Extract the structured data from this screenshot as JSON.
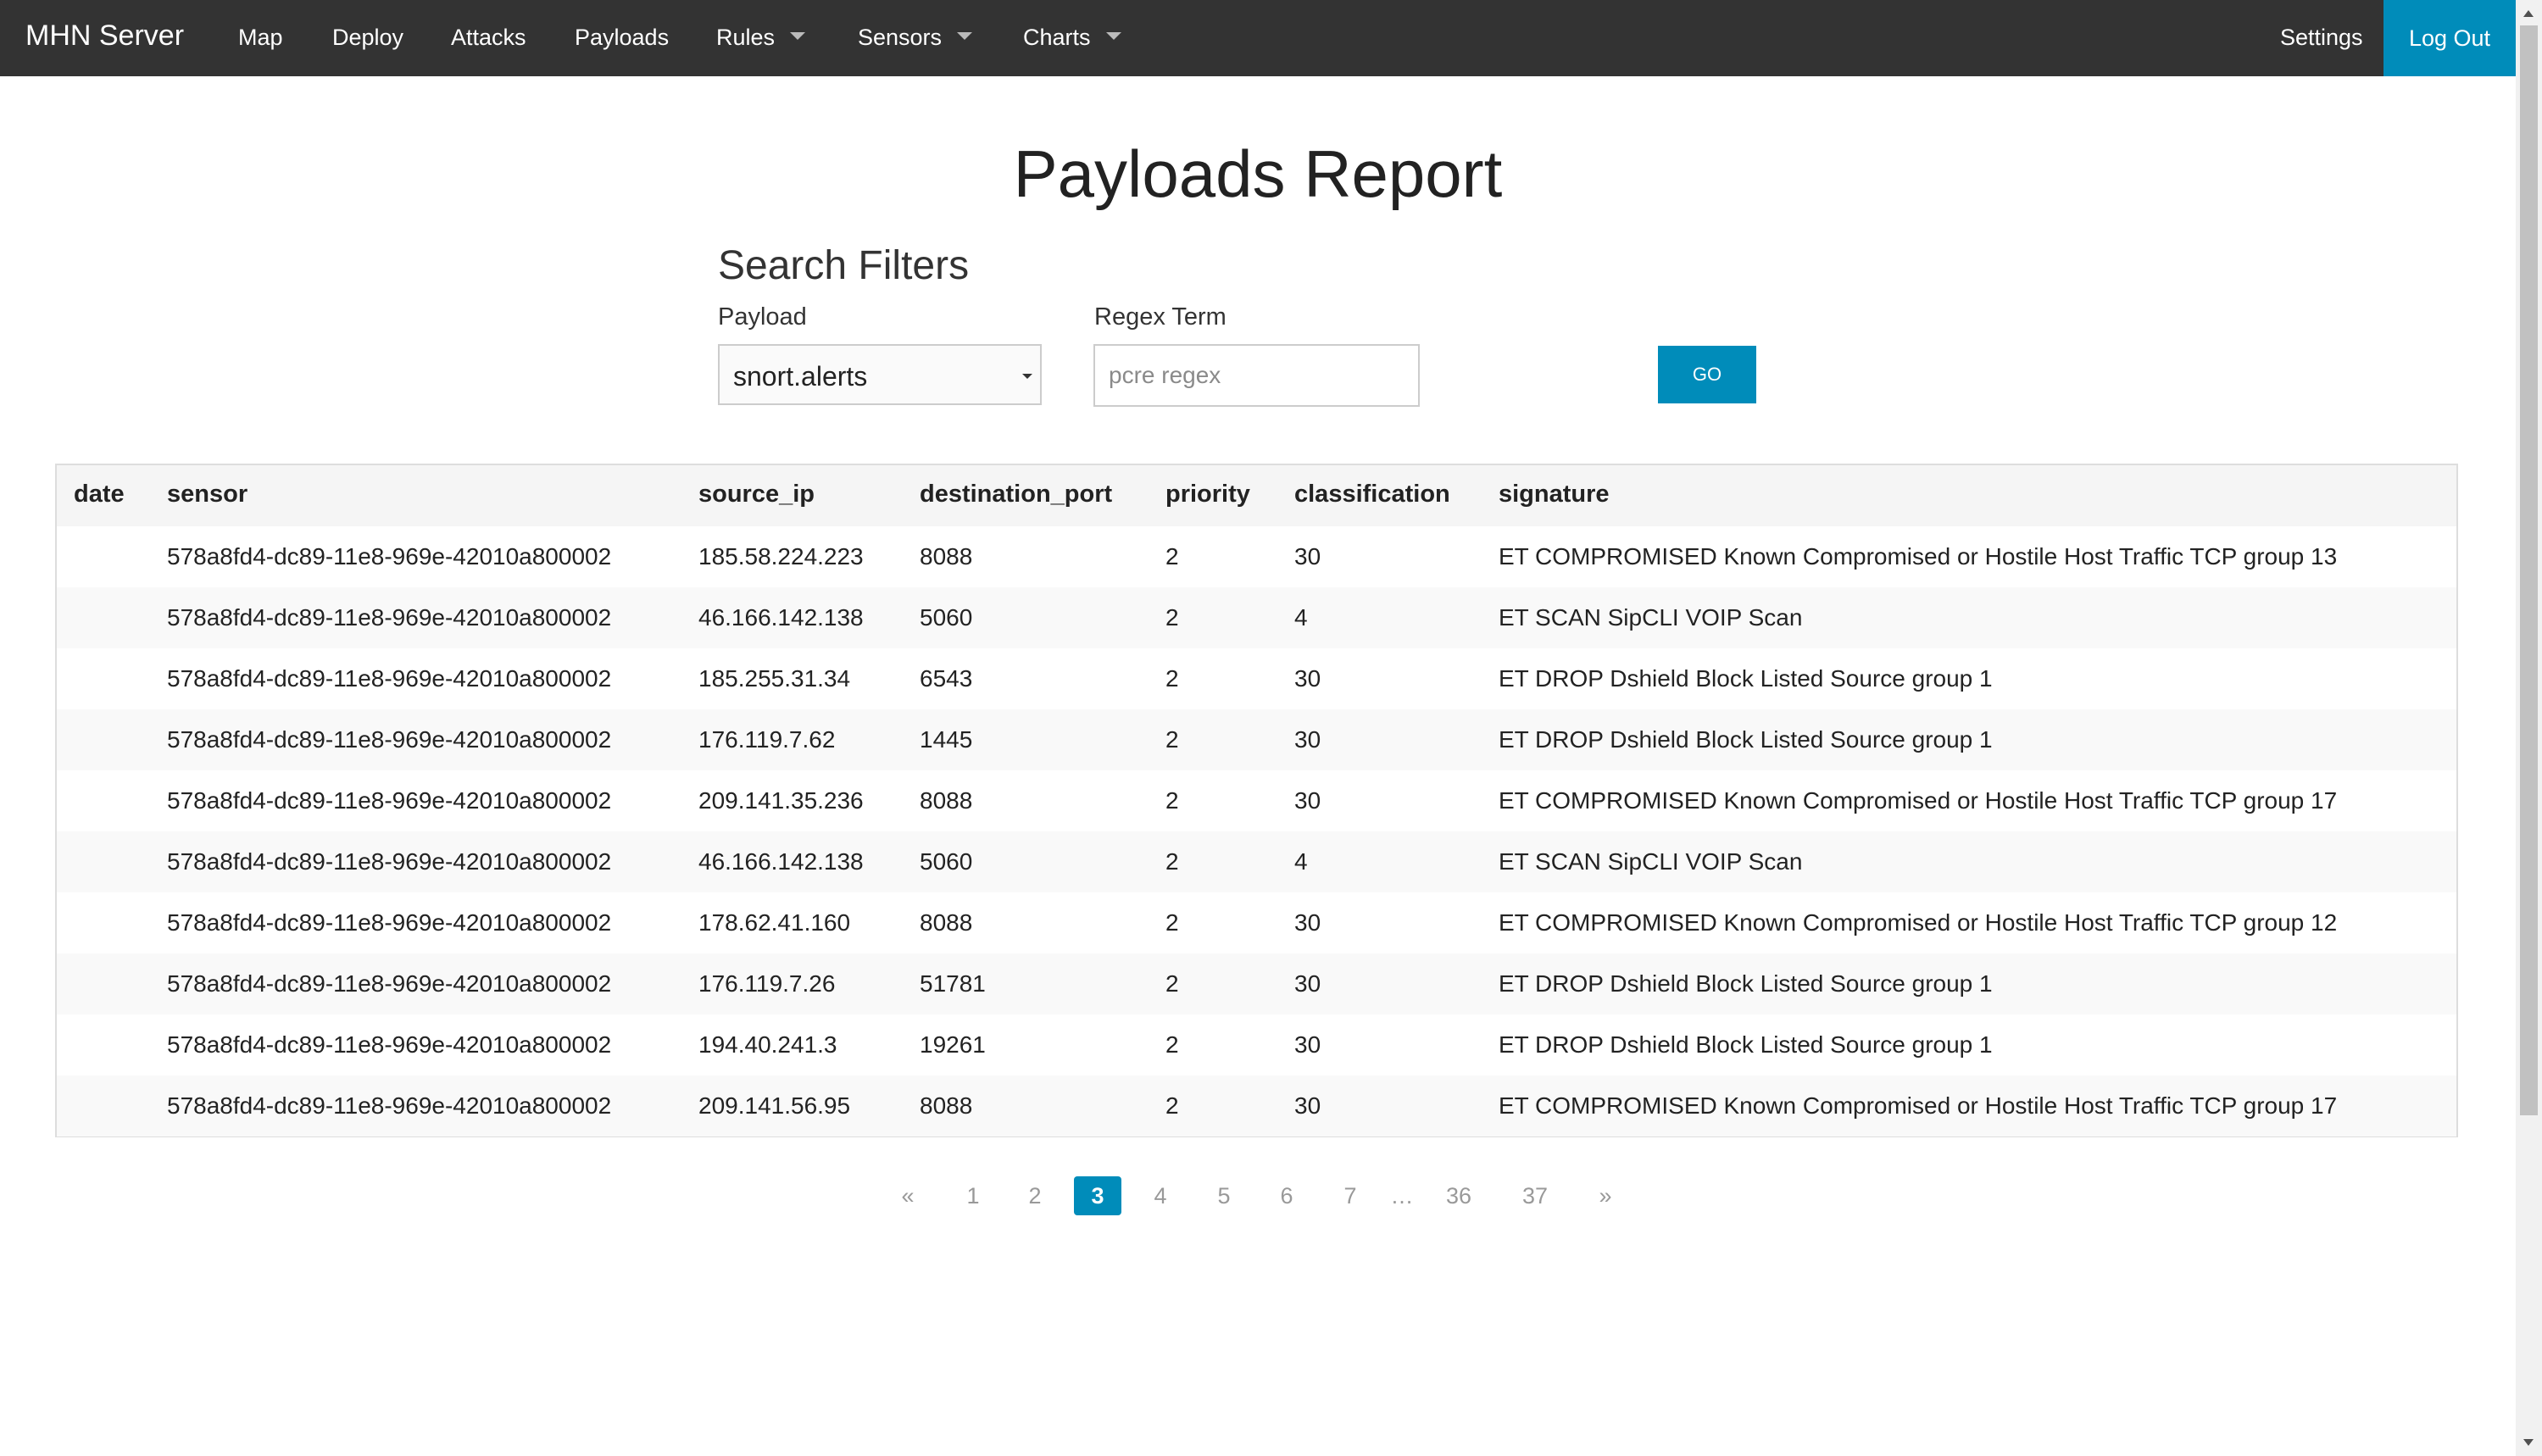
{
  "nav": {
    "brand": "MHN Server",
    "items": [
      {
        "label": "Map"
      },
      {
        "label": "Deploy"
      },
      {
        "label": "Attacks"
      },
      {
        "label": "Payloads"
      },
      {
        "label": "Rules"
      },
      {
        "label": "Sensors"
      },
      {
        "label": "Charts"
      }
    ],
    "settings": "Settings",
    "logout": "Log Out"
  },
  "page": {
    "title": "Payloads Report"
  },
  "filters": {
    "heading": "Search Filters",
    "payload_label": "Payload",
    "payload_value": "snort.alerts",
    "regex_label": "Regex Term",
    "regex_placeholder": "pcre regex",
    "go_label": "GO"
  },
  "table": {
    "headers": [
      "date",
      "sensor",
      "source_ip",
      "destination_port",
      "priority",
      "classification",
      "signature"
    ],
    "rows": [
      {
        "date": "",
        "sensor": "578a8fd4-dc89-11e8-969e-42010a800002",
        "source_ip": "185.58.224.223",
        "destination_port": "8088",
        "priority": "2",
        "classification": "30",
        "signature": "ET COMPROMISED Known Compromised or Hostile Host Traffic TCP group 13"
      },
      {
        "date": "",
        "sensor": "578a8fd4-dc89-11e8-969e-42010a800002",
        "source_ip": "46.166.142.138",
        "destination_port": "5060",
        "priority": "2",
        "classification": "4",
        "signature": "ET SCAN SipCLI VOIP Scan"
      },
      {
        "date": "",
        "sensor": "578a8fd4-dc89-11e8-969e-42010a800002",
        "source_ip": "185.255.31.34",
        "destination_port": "6543",
        "priority": "2",
        "classification": "30",
        "signature": "ET DROP Dshield Block Listed Source group 1"
      },
      {
        "date": "",
        "sensor": "578a8fd4-dc89-11e8-969e-42010a800002",
        "source_ip": "176.119.7.62",
        "destination_port": "1445",
        "priority": "2",
        "classification": "30",
        "signature": "ET DROP Dshield Block Listed Source group 1"
      },
      {
        "date": "",
        "sensor": "578a8fd4-dc89-11e8-969e-42010a800002",
        "source_ip": "209.141.35.236",
        "destination_port": "8088",
        "priority": "2",
        "classification": "30",
        "signature": "ET COMPROMISED Known Compromised or Hostile Host Traffic TCP group 17"
      },
      {
        "date": "",
        "sensor": "578a8fd4-dc89-11e8-969e-42010a800002",
        "source_ip": "46.166.142.138",
        "destination_port": "5060",
        "priority": "2",
        "classification": "4",
        "signature": "ET SCAN SipCLI VOIP Scan"
      },
      {
        "date": "",
        "sensor": "578a8fd4-dc89-11e8-969e-42010a800002",
        "source_ip": "178.62.41.160",
        "destination_port": "8088",
        "priority": "2",
        "classification": "30",
        "signature": "ET COMPROMISED Known Compromised or Hostile Host Traffic TCP group 12"
      },
      {
        "date": "",
        "sensor": "578a8fd4-dc89-11e8-969e-42010a800002",
        "source_ip": "176.119.7.26",
        "destination_port": "51781",
        "priority": "2",
        "classification": "30",
        "signature": "ET DROP Dshield Block Listed Source group 1"
      },
      {
        "date": "",
        "sensor": "578a8fd4-dc89-11e8-969e-42010a800002",
        "source_ip": "194.40.241.3",
        "destination_port": "19261",
        "priority": "2",
        "classification": "30",
        "signature": "ET DROP Dshield Block Listed Source group 1"
      },
      {
        "date": "",
        "sensor": "578a8fd4-dc89-11e8-969e-42010a800002",
        "source_ip": "209.141.56.95",
        "destination_port": "8088",
        "priority": "2",
        "classification": "30",
        "signature": "ET COMPROMISED Known Compromised or Hostile Host Traffic TCP group 17"
      }
    ]
  },
  "pagination": {
    "prev": "«",
    "next": "»",
    "ellipsis": "…",
    "pages": [
      "1",
      "2",
      "3",
      "4",
      "5",
      "6",
      "7",
      "36",
      "37"
    ],
    "current": "3"
  },
  "colors": {
    "navbar": "#333333",
    "accent": "#008cba"
  }
}
